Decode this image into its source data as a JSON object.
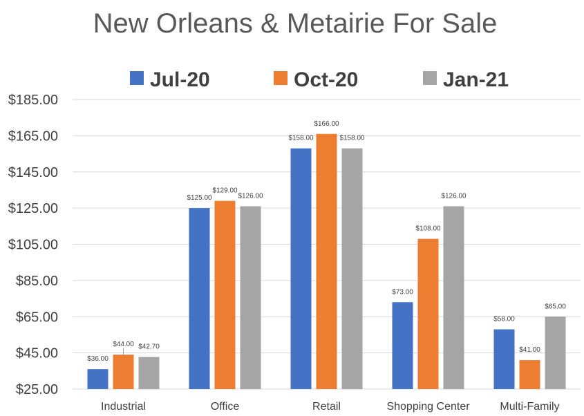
{
  "chart_data": {
    "type": "bar",
    "title": "New Orleans & Metairie For Sale",
    "categories": [
      "Industrial",
      "Office",
      "Retail",
      "Shopping Center",
      "Multi-Family"
    ],
    "series": [
      {
        "name": "Jul-20",
        "color": "#4472c4",
        "values": [
          36.0,
          125.0,
          158.0,
          73.0,
          58.0
        ],
        "labels": [
          "$36.00",
          "$125.00",
          "$158.00",
          "$73.00",
          "$58.00"
        ]
      },
      {
        "name": "Oct-20",
        "color": "#ed7d31",
        "values": [
          44.0,
          129.0,
          166.0,
          108.0,
          41.0
        ],
        "labels": [
          "$44.00",
          "$129.00",
          "$166.00",
          "$108.00",
          "$41.00"
        ]
      },
      {
        "name": "Jan-21",
        "color": "#a5a5a5",
        "values": [
          42.7,
          126.0,
          158.0,
          126.0,
          65.0
        ],
        "labels": [
          "$42.70",
          "$126.00",
          "$158.00",
          "$126.00",
          "$65.00"
        ]
      }
    ],
    "ylim": [
      25,
      185
    ],
    "yticks": [
      25,
      45,
      65,
      85,
      105,
      125,
      145,
      165,
      185
    ],
    "ytick_labels": [
      "$25.00",
      "$45.00",
      "$65.00",
      "$85.00",
      "$105.00",
      "$125.00",
      "$145.00",
      "$165.00",
      "$185.00"
    ],
    "grid": true,
    "legend_position": "top"
  }
}
